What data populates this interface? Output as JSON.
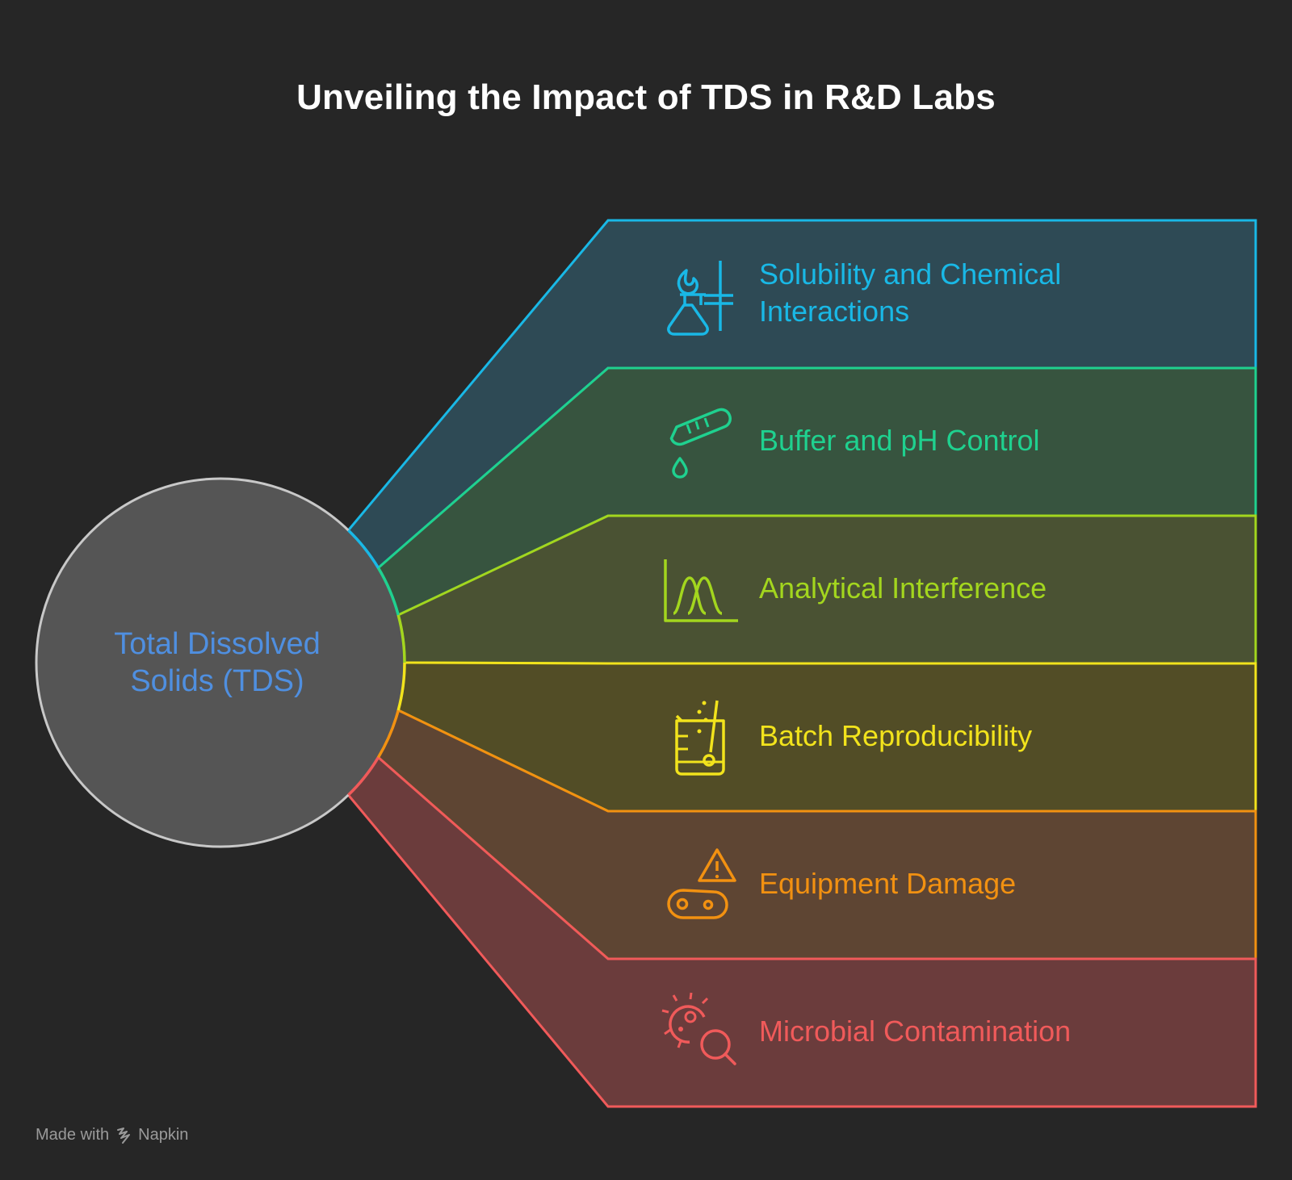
{
  "title": "Unveiling the Impact of TDS in R&D Labs",
  "hub": {
    "line1": "Total Dissolved",
    "line2": "Solids (TDS)",
    "color": "#4f8fe0"
  },
  "branches": [
    {
      "label": "Solubility and Chemical Interactions",
      "color": "#19b8e6",
      "fill": "#2e4a55",
      "icon": "bunsen-burner-flask-icon"
    },
    {
      "label": "Buffer and pH Control",
      "color": "#1fd18f",
      "fill": "#37543f",
      "icon": "test-tube-drop-icon"
    },
    {
      "label": "Analytical Interference",
      "color": "#a3d61e",
      "fill": "#4a5233",
      "icon": "chromatogram-peaks-icon"
    },
    {
      "label": "Batch Reproducibility",
      "color": "#f2e31c",
      "fill": "#524d26",
      "icon": "beaker-stirrer-icon"
    },
    {
      "label": "Equipment Damage",
      "color": "#f29111",
      "fill": "#5e4533",
      "icon": "warning-conveyor-icon"
    },
    {
      "label": "Microbial Contamination",
      "color": "#f05a5a",
      "fill": "#6b3c3c",
      "icon": "microbe-magnifier-icon"
    }
  ],
  "footer": {
    "made_with": "Made with",
    "brand": "Napkin"
  }
}
